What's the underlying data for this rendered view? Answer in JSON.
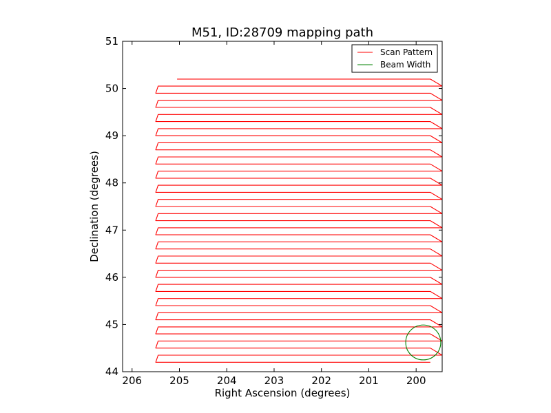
{
  "chart_data": {
    "type": "line",
    "title": "M51, ID:28709 mapping path",
    "xlabel": "Right Ascension (degrees)",
    "ylabel": "Declination (degrees)",
    "xlim": [
      206.2,
      199.45
    ],
    "ylim": [
      44,
      51
    ],
    "x_inverted": true,
    "xticks": [
      206,
      205,
      204,
      203,
      202,
      201,
      200
    ],
    "yticks": [
      44,
      45,
      46,
      47,
      48,
      49,
      50,
      51
    ],
    "grid": false,
    "legend": {
      "placement": "top-right",
      "entries": [
        {
          "label": "Scan Pattern",
          "color": "#ff0000"
        },
        {
          "label": "Beam Width",
          "color": "#008000"
        }
      ]
    },
    "series": [
      {
        "name": "Scan Pattern",
        "color": "#ff0000",
        "legs": {
          "dec_start": 50.2,
          "dec_spacing": 0.15,
          "count": 41,
          "west_ra": 205.45,
          "west_turn_ra": 205.5,
          "east_ra": 199.7,
          "east_turn_ra": 199.45
        }
      },
      {
        "name": "Beam Width",
        "color": "#008000",
        "circle": {
          "center_ra": 199.85,
          "center_dec": 44.62,
          "radius_deg": 0.37
        }
      }
    ]
  }
}
